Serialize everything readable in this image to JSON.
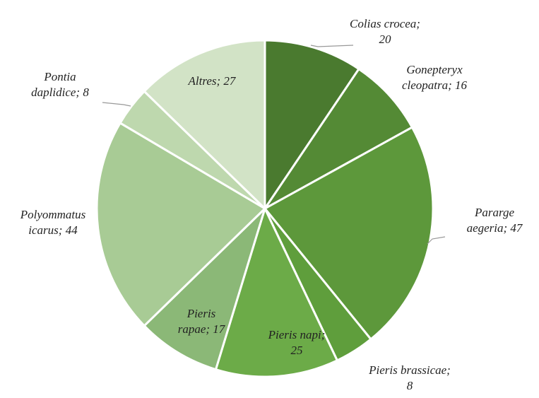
{
  "chart_data": {
    "type": "pie",
    "values": [
      20,
      16,
      47,
      8,
      25,
      17,
      44,
      8,
      27
    ],
    "value_labels": [
      "Colias crocea; 20",
      "Gonepteryx cleopatra; 16",
      "Pararge aegeria; 47",
      "Pieris brassicae; 8",
      "Pieris napi; 25",
      "Pieris rapae; 17",
      "Polyommatus icarus; 44",
      "Pontia daplidice; 8",
      "Altres; 27"
    ],
    "colors": [
      "#4a7a2f",
      "#548a35",
      "#5d983b",
      "#5f9e3c",
      "#6cab48",
      "#8bb877",
      "#a8cb95",
      "#bed8ae",
      "#d2e3c6"
    ]
  }
}
